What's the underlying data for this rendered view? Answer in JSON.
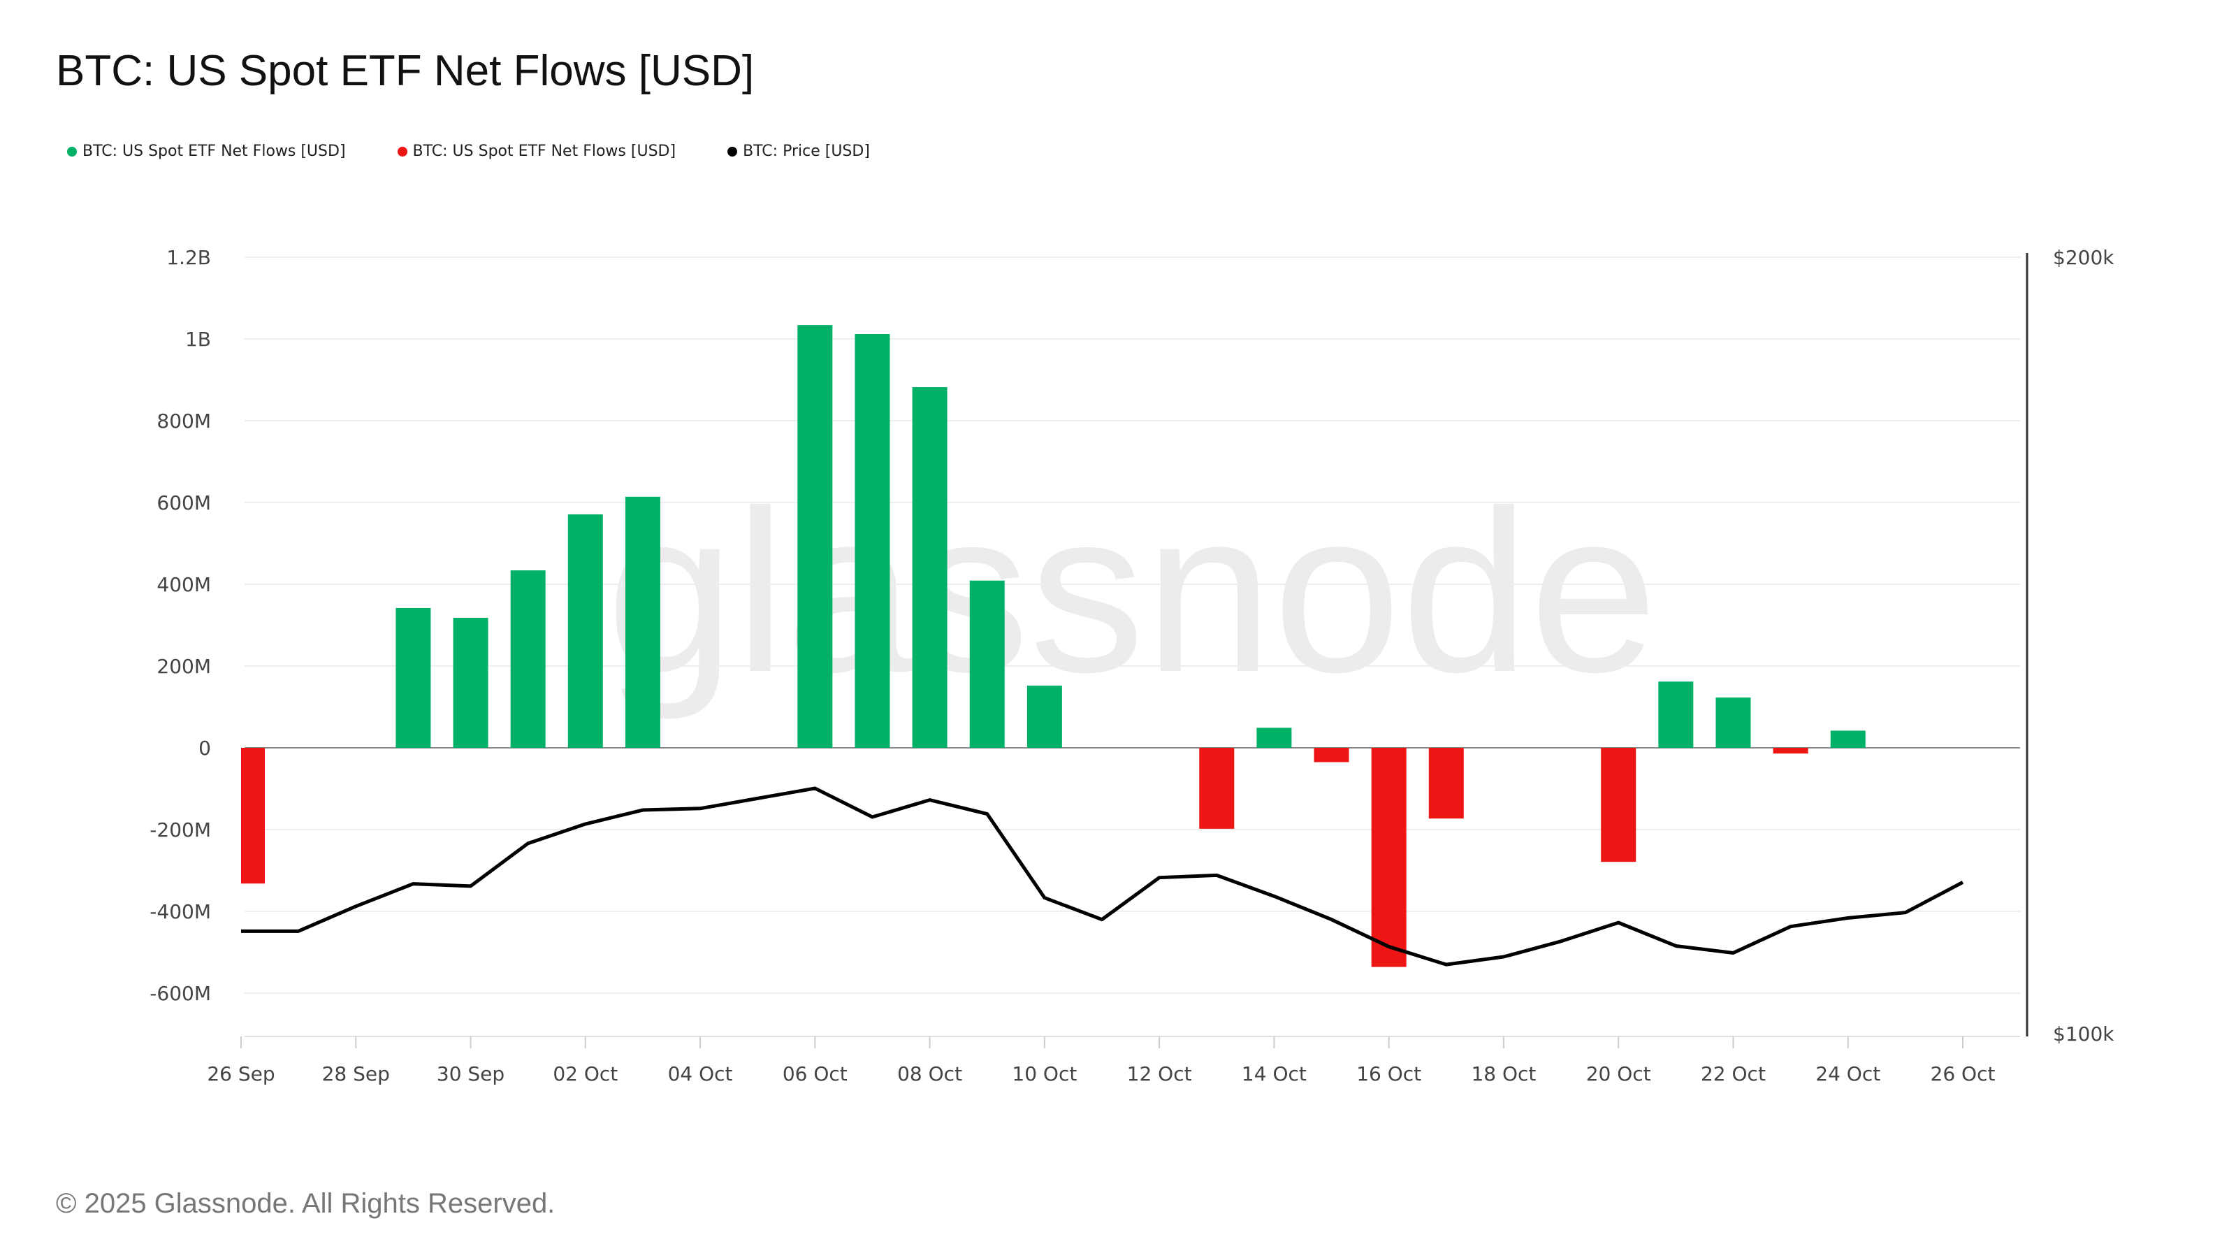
{
  "title": "BTC: US Spot ETF Net Flows [USD]",
  "footer": "© 2025 Glassnode. All Rights Reserved.",
  "watermark": "glassnode",
  "colors": {
    "inflow": "#00b167",
    "outflow": "#ee1515",
    "price": "#000000"
  },
  "legend": [
    {
      "label": "BTC: US Spot ETF Net Flows [USD]",
      "color": "#00b167"
    },
    {
      "label": "BTC: US Spot ETF Net Flows [USD]",
      "color": "#ee1515"
    },
    {
      "label": "BTC: Price [USD]",
      "color": "#000000"
    }
  ],
  "chart_data": {
    "type": "bar",
    "title": "BTC: US Spot ETF Net Flows [USD]",
    "x": [
      "2025-09-26",
      "2025-09-27",
      "2025-09-28",
      "2025-09-29",
      "2025-09-30",
      "2025-10-01",
      "2025-10-02",
      "2025-10-03",
      "2025-10-04",
      "2025-10-05",
      "2025-10-06",
      "2025-10-07",
      "2025-10-08",
      "2025-10-09",
      "2025-10-10",
      "2025-10-11",
      "2025-10-12",
      "2025-10-13",
      "2025-10-14",
      "2025-10-15",
      "2025-10-16",
      "2025-10-17",
      "2025-10-18",
      "2025-10-19",
      "2025-10-20",
      "2025-10-21",
      "2025-10-22",
      "2025-10-23",
      "2025-10-24",
      "2025-10-25",
      "2025-10-26"
    ],
    "x_tick_labels": [
      "26 Sep",
      "28 Sep",
      "30 Sep",
      "02 Oct",
      "04 Oct",
      "06 Oct",
      "08 Oct",
      "10 Oct",
      "12 Oct",
      "14 Oct",
      "16 Oct",
      "18 Oct",
      "20 Oct",
      "22 Oct",
      "24 Oct",
      "26 Oct"
    ],
    "y_left": {
      "ticks": [
        "1.2B",
        "1B",
        "800M",
        "600M",
        "400M",
        "200M",
        "0",
        "-200M",
        "-400M",
        "-600M"
      ],
      "tick_values": [
        1200,
        1000,
        800,
        600,
        400,
        200,
        0,
        -200,
        -400,
        -600
      ],
      "unit": "USD millions",
      "ylim": [
        -700,
        1200
      ]
    },
    "y_right": {
      "ticks": [
        "$200k",
        "$100k"
      ],
      "tick_values": [
        200,
        100
      ],
      "unit": "USD thousands",
      "ylim": [
        100,
        200
      ]
    },
    "grid": true,
    "legend_position": "top-left",
    "series": [
      {
        "name": "BTC: US Spot ETF Net Flows [USD]",
        "type": "bar",
        "axis": "left",
        "values": [
          -332,
          0,
          0,
          342,
          318,
          434,
          571,
          614,
          0,
          0,
          1034,
          1012,
          882,
          409,
          152,
          0,
          0,
          -198,
          49,
          -35,
          -536,
          -173,
          0,
          0,
          -279,
          162,
          123,
          -14,
          42,
          0,
          0
        ]
      },
      {
        "name": "BTC: Price [USD]",
        "type": "line",
        "axis": "right",
        "values": [
          113.2,
          113.2,
          116.4,
          119.3,
          119.0,
          124.5,
          127.0,
          128.8,
          129.0,
          130.3,
          131.6,
          127.9,
          130.1,
          128.3,
          117.5,
          114.7,
          120.1,
          120.4,
          117.7,
          114.7,
          111.2,
          108.9,
          109.9,
          111.9,
          114.3,
          111.3,
          110.4,
          113.8,
          114.9,
          115.6,
          119.5
        ]
      }
    ]
  }
}
